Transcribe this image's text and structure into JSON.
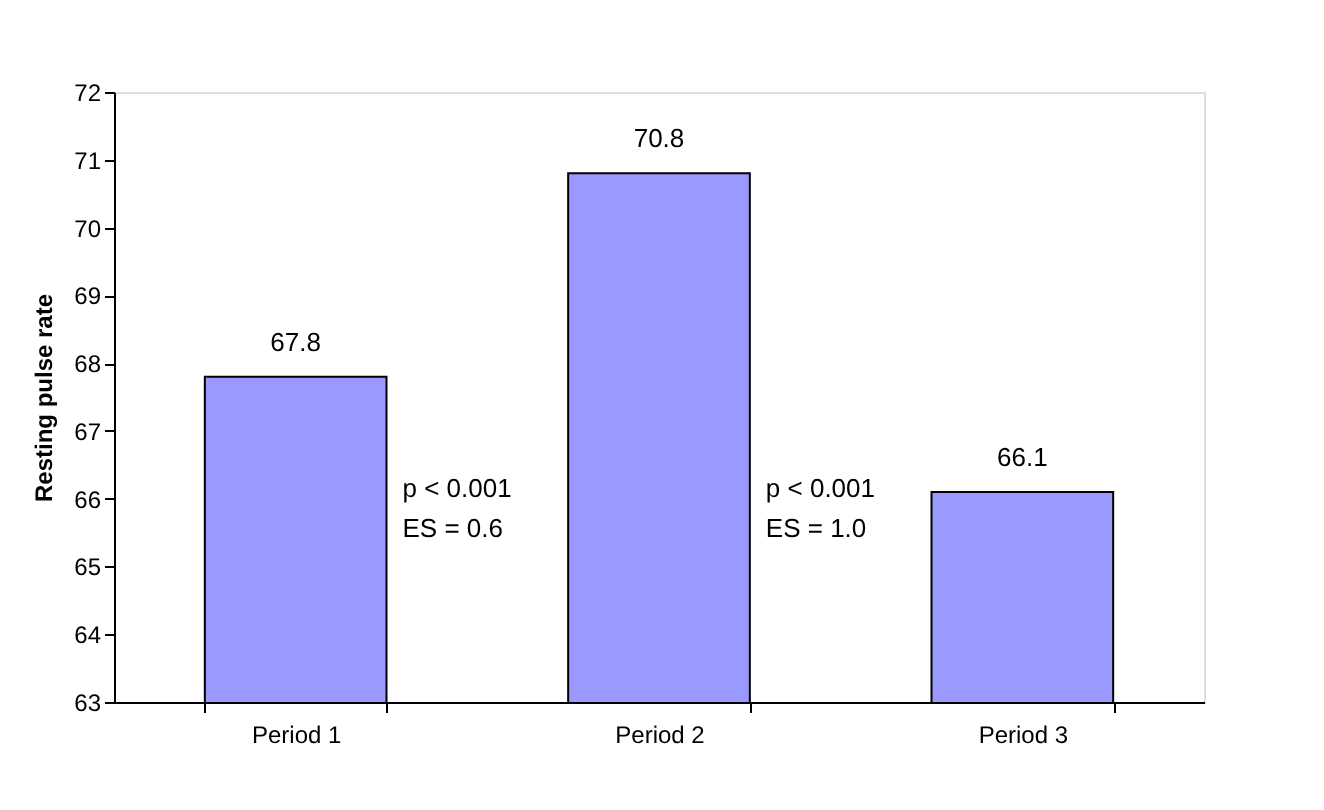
{
  "chart_data": {
    "type": "bar",
    "ylabel": "Resting pulse rate",
    "categories": [
      "Period 1",
      "Period 2",
      "Period 3"
    ],
    "values": [
      67.8,
      70.8,
      66.1
    ],
    "color": "#9999ff",
    "ylim": [
      63,
      72
    ],
    "yticks": [
      63,
      64,
      65,
      66,
      67,
      68,
      69,
      70,
      71,
      72
    ],
    "data_labels": true,
    "grid": false,
    "annotations": [
      "p < 0.001\nES = 0.6",
      "p < 0.001\nES = 1.0"
    ]
  }
}
